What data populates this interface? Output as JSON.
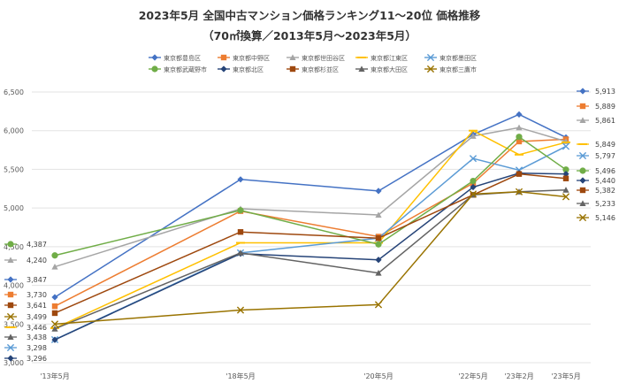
{
  "chart_data": {
    "type": "line",
    "title": "2023年5月 全国中古マンション価格ランキング11～20位 価格推移",
    "subtitle": "（70㎡換算／2013年5月～2023年5月）",
    "categories": [
      "'13年5月",
      "'18年5月",
      "'20年5月",
      "'22年5月",
      "'23年2月",
      "'23年5月"
    ],
    "y_ticks": [
      "3,000",
      "3,500",
      "4,000",
      "4,500",
      "5,000",
      "5,500",
      "6,000",
      "6,500"
    ],
    "ylim": [
      3000,
      6500
    ],
    "grid": true,
    "legend_position": "top",
    "series": [
      {
        "name": "東京都豊島区",
        "color": "#4472C4",
        "marker": "diamond",
        "values": [
          3847,
          5370,
          5220,
          5950,
          6210,
          5913
        ],
        "end_label": "5,913"
      },
      {
        "name": "東京都中野区",
        "color": "#ED7D31",
        "marker": "square",
        "values": [
          3730,
          4960,
          4630,
          5320,
          5860,
          5889
        ],
        "end_label": "5,889"
      },
      {
        "name": "東京都世田谷区",
        "color": "#A5A5A5",
        "marker": "triangle",
        "values": [
          4240,
          4990,
          4910,
          5930,
          6040,
          5861
        ],
        "end_label": "5,861"
      },
      {
        "name": "東京都江東区",
        "color": "#FFC000",
        "marker": "dash",
        "values": [
          3446,
          4550,
          4550,
          6000,
          5690,
          5849
        ],
        "end_label": "5,849"
      },
      {
        "name": "東京都墨田区",
        "color": "#5B9BD5",
        "marker": "x",
        "values": [
          3298,
          4420,
          4610,
          5640,
          5490,
          5797
        ],
        "end_label": "5,797"
      },
      {
        "name": "東京都武蔵野市",
        "color": "#70AD47",
        "marker": "circle",
        "values": [
          4387,
          4970,
          4530,
          5350,
          5920,
          5496
        ],
        "end_label": "5,496"
      },
      {
        "name": "東京都北区",
        "color": "#264478",
        "marker": "diamond",
        "values": [
          3296,
          4410,
          4330,
          5270,
          5450,
          5440
        ],
        "end_label": "5,440"
      },
      {
        "name": "東京都杉並区",
        "color": "#9E480E",
        "marker": "square",
        "values": [
          3641,
          4690,
          4610,
          5170,
          5440,
          5382
        ],
        "end_label": "5,382"
      },
      {
        "name": "東京都大田区",
        "color": "#636363",
        "marker": "triangle",
        "values": [
          3438,
          4420,
          4160,
          5170,
          5210,
          5233
        ],
        "end_label": "5,233"
      },
      {
        "name": "東京都三鷹市",
        "color": "#997300",
        "marker": "x",
        "values": [
          3499,
          3680,
          3750,
          5180,
          5210,
          5146
        ],
        "end_label": "5,146"
      }
    ],
    "start_labels": [
      "4,387",
      "4,240",
      "3,847",
      "3,730",
      "3,641",
      "3,499",
      "3,446",
      "3,438",
      "3,298",
      "3,296"
    ]
  }
}
